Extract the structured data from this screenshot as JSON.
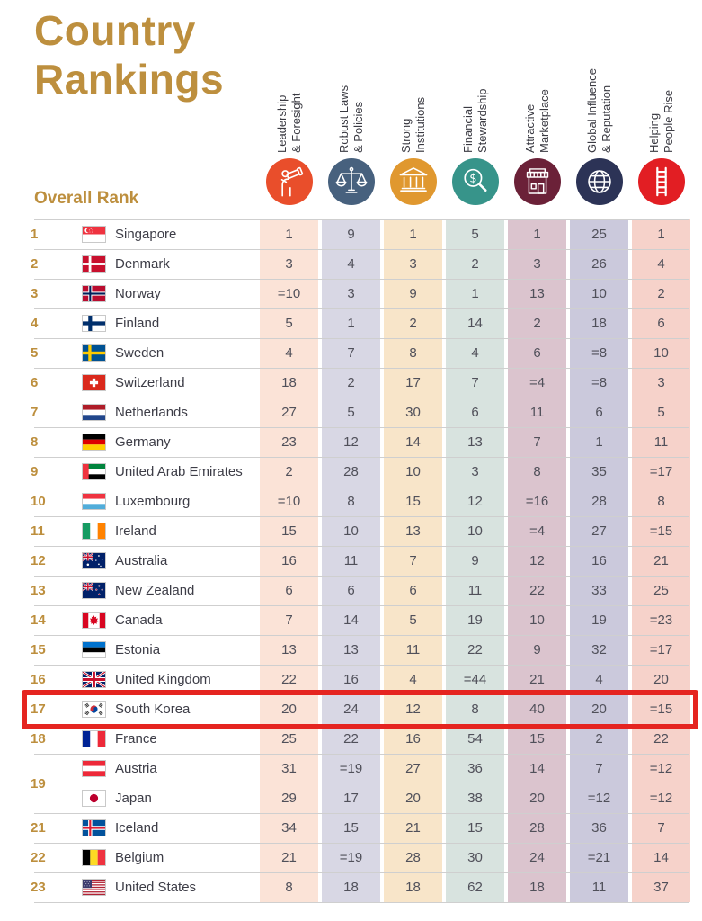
{
  "header": {
    "title_line1": "Country",
    "title_line2": "Rankings",
    "overall_rank_label": "Overall Rank"
  },
  "colors": {
    "gold": "#BD8F3E",
    "country_text": "#3D3D47",
    "value_text": "#50505A",
    "header_label_text": "#3A3A42",
    "separator": "#CFCFCF",
    "highlight_border": "#E52420"
  },
  "columns": [
    {
      "id": "leadership-foresight",
      "label_lines": [
        "Leadership",
        "& Foresight"
      ],
      "icon": "telescope-icon",
      "circle_color": "#E94E2B",
      "stripe_color": "#FBE3D7"
    },
    {
      "id": "robust-laws-policies",
      "label_lines": [
        "Robust Laws",
        "& Policies"
      ],
      "icon": "scales-icon",
      "circle_color": "#47617E",
      "stripe_color": "#D8D7E4"
    },
    {
      "id": "strong-institutions",
      "label_lines": [
        "Strong",
        "Institutions"
      ],
      "icon": "bank-icon",
      "circle_color": "#E0982F",
      "stripe_color": "#F8E5C9"
    },
    {
      "id": "financial-stewardship",
      "label_lines": [
        "Financial",
        "Stewardship"
      ],
      "icon": "dollar-magnifier-icon",
      "circle_color": "#37948A",
      "stripe_color": "#D8E3DF"
    },
    {
      "id": "attractive-marketplace",
      "label_lines": [
        "Attractive",
        "Marketplace"
      ],
      "icon": "storefront-icon",
      "circle_color": "#6B2138",
      "stripe_color": "#DBC4CE"
    },
    {
      "id": "global-influence-reputation",
      "label_lines": [
        "Global Influence",
        "& Reputation"
      ],
      "icon": "globe-icon",
      "circle_color": "#2C3356",
      "stripe_color": "#CBC9DC"
    },
    {
      "id": "helping-people-rise",
      "label_lines": [
        "Helping",
        "People Rise"
      ],
      "icon": "ladder-icon",
      "circle_color": "#E21E23",
      "stripe_color": "#F6D2CA"
    }
  ],
  "rows": [
    {
      "rank": "1",
      "country": "Singapore",
      "flag": "sg",
      "values": [
        "1",
        "9",
        "1",
        "5",
        "1",
        "25",
        "1"
      ]
    },
    {
      "rank": "2",
      "country": "Denmark",
      "flag": "dk",
      "values": [
        "3",
        "4",
        "3",
        "2",
        "3",
        "26",
        "4"
      ]
    },
    {
      "rank": "3",
      "country": "Norway",
      "flag": "no",
      "values": [
        "=10",
        "3",
        "9",
        "1",
        "13",
        "10",
        "2"
      ]
    },
    {
      "rank": "4",
      "country": "Finland",
      "flag": "fi",
      "values": [
        "5",
        "1",
        "2",
        "14",
        "2",
        "18",
        "6"
      ]
    },
    {
      "rank": "5",
      "country": "Sweden",
      "flag": "se",
      "values": [
        "4",
        "7",
        "8",
        "4",
        "6",
        "=8",
        "10"
      ]
    },
    {
      "rank": "6",
      "country": "Switzerland",
      "flag": "ch",
      "values": [
        "18",
        "2",
        "17",
        "7",
        "=4",
        "=8",
        "3"
      ]
    },
    {
      "rank": "7",
      "country": "Netherlands",
      "flag": "nl",
      "values": [
        "27",
        "5",
        "30",
        "6",
        "11",
        "6",
        "5"
      ]
    },
    {
      "rank": "8",
      "country": "Germany",
      "flag": "de",
      "values": [
        "23",
        "12",
        "14",
        "13",
        "7",
        "1",
        "11"
      ]
    },
    {
      "rank": "9",
      "country": "United Arab Emirates",
      "flag": "ae",
      "values": [
        "2",
        "28",
        "10",
        "3",
        "8",
        "35",
        "=17"
      ]
    },
    {
      "rank": "10",
      "country": "Luxembourg",
      "flag": "lu",
      "values": [
        "=10",
        "8",
        "15",
        "12",
        "=16",
        "28",
        "8"
      ]
    },
    {
      "rank": "11",
      "country": "Ireland",
      "flag": "ie",
      "values": [
        "15",
        "10",
        "13",
        "10",
        "=4",
        "27",
        "=15"
      ]
    },
    {
      "rank": "12",
      "country": "Australia",
      "flag": "au",
      "values": [
        "16",
        "11",
        "7",
        "9",
        "12",
        "16",
        "21"
      ]
    },
    {
      "rank": "13",
      "country": "New Zealand",
      "flag": "nz",
      "values": [
        "6",
        "6",
        "6",
        "11",
        "22",
        "33",
        "25"
      ]
    },
    {
      "rank": "14",
      "country": "Canada",
      "flag": "ca",
      "values": [
        "7",
        "14",
        "5",
        "19",
        "10",
        "19",
        "=23"
      ]
    },
    {
      "rank": "15",
      "country": "Estonia",
      "flag": "ee",
      "values": [
        "13",
        "13",
        "11",
        "22",
        "9",
        "32",
        "=17"
      ]
    },
    {
      "rank": "16",
      "country": "United Kingdom",
      "flag": "gb",
      "values": [
        "22",
        "16",
        "4",
        "=44",
        "21",
        "4",
        "20"
      ]
    },
    {
      "rank": "17",
      "country": "South Korea",
      "flag": "kr",
      "values": [
        "20",
        "24",
        "12",
        "8",
        "40",
        "20",
        "=15"
      ],
      "highlight": true
    },
    {
      "rank": "18",
      "country": "France",
      "flag": "fr",
      "values": [
        "25",
        "22",
        "16",
        "54",
        "15",
        "2",
        "22"
      ]
    },
    {
      "rank": "19",
      "country": "Austria",
      "flag": "at",
      "values": [
        "31",
        "=19",
        "27",
        "36",
        "14",
        "7",
        "=12"
      ],
      "rank_rowspan": 2
    },
    {
      "rank": "19",
      "country": "Japan",
      "flag": "jp",
      "values": [
        "29",
        "17",
        "20",
        "38",
        "20",
        "=12",
        "=12"
      ],
      "merge_with_prev": true
    },
    {
      "rank": "21",
      "country": "Iceland",
      "flag": "is",
      "values": [
        "34",
        "15",
        "21",
        "15",
        "28",
        "36",
        "7"
      ]
    },
    {
      "rank": "22",
      "country": "Belgium",
      "flag": "be",
      "values": [
        "21",
        "=19",
        "28",
        "30",
        "24",
        "=21",
        "14"
      ]
    },
    {
      "rank": "23",
      "country": "United States",
      "flag": "us",
      "values": [
        "8",
        "18",
        "18",
        "62",
        "18",
        "11",
        "37"
      ]
    }
  ],
  "chart_data": {
    "type": "table",
    "title": "Country Rankings",
    "columns": [
      "Overall Rank",
      "Country",
      "Leadership & Foresight",
      "Robust Laws & Policies",
      "Strong Institutions",
      "Financial Stewardship",
      "Attractive Marketplace",
      "Global Influence & Reputation",
      "Helping People Rise"
    ],
    "rows": [
      [
        "1",
        "Singapore",
        "1",
        "9",
        "1",
        "5",
        "1",
        "25",
        "1"
      ],
      [
        "2",
        "Denmark",
        "3",
        "4",
        "3",
        "2",
        "3",
        "26",
        "4"
      ],
      [
        "3",
        "Norway",
        "=10",
        "3",
        "9",
        "1",
        "13",
        "10",
        "2"
      ],
      [
        "4",
        "Finland",
        "5",
        "1",
        "2",
        "14",
        "2",
        "18",
        "6"
      ],
      [
        "5",
        "Sweden",
        "4",
        "7",
        "8",
        "4",
        "6",
        "=8",
        "10"
      ],
      [
        "6",
        "Switzerland",
        "18",
        "2",
        "17",
        "7",
        "=4",
        "=8",
        "3"
      ],
      [
        "7",
        "Netherlands",
        "27",
        "5",
        "30",
        "6",
        "11",
        "6",
        "5"
      ],
      [
        "8",
        "Germany",
        "23",
        "12",
        "14",
        "13",
        "7",
        "1",
        "11"
      ],
      [
        "9",
        "United Arab Emirates",
        "2",
        "28",
        "10",
        "3",
        "8",
        "35",
        "=17"
      ],
      [
        "10",
        "Luxembourg",
        "=10",
        "8",
        "15",
        "12",
        "=16",
        "28",
        "8"
      ],
      [
        "11",
        "Ireland",
        "15",
        "10",
        "13",
        "10",
        "=4",
        "27",
        "=15"
      ],
      [
        "12",
        "Australia",
        "16",
        "11",
        "7",
        "9",
        "12",
        "16",
        "21"
      ],
      [
        "13",
        "New Zealand",
        "6",
        "6",
        "6",
        "11",
        "22",
        "33",
        "25"
      ],
      [
        "14",
        "Canada",
        "7",
        "14",
        "5",
        "19",
        "10",
        "19",
        "=23"
      ],
      [
        "15",
        "Estonia",
        "13",
        "13",
        "11",
        "22",
        "9",
        "32",
        "=17"
      ],
      [
        "16",
        "United Kingdom",
        "22",
        "16",
        "4",
        "=44",
        "21",
        "4",
        "20"
      ],
      [
        "17",
        "South Korea",
        "20",
        "24",
        "12",
        "8",
        "40",
        "20",
        "=15"
      ],
      [
        "18",
        "France",
        "25",
        "22",
        "16",
        "54",
        "15",
        "2",
        "22"
      ],
      [
        "19",
        "Austria",
        "31",
        "=19",
        "27",
        "36",
        "14",
        "7",
        "=12"
      ],
      [
        "19",
        "Japan",
        "29",
        "17",
        "20",
        "38",
        "20",
        "=12",
        "=12"
      ],
      [
        "21",
        "Iceland",
        "34",
        "15",
        "21",
        "15",
        "28",
        "36",
        "7"
      ],
      [
        "22",
        "Belgium",
        "21",
        "=19",
        "28",
        "30",
        "24",
        "=21",
        "14"
      ],
      [
        "23",
        "United States",
        "8",
        "18",
        "18",
        "62",
        "18",
        "11",
        "37"
      ]
    ],
    "highlighted_row": "South Korea",
    "legend_position": "top",
    "grid": false
  }
}
